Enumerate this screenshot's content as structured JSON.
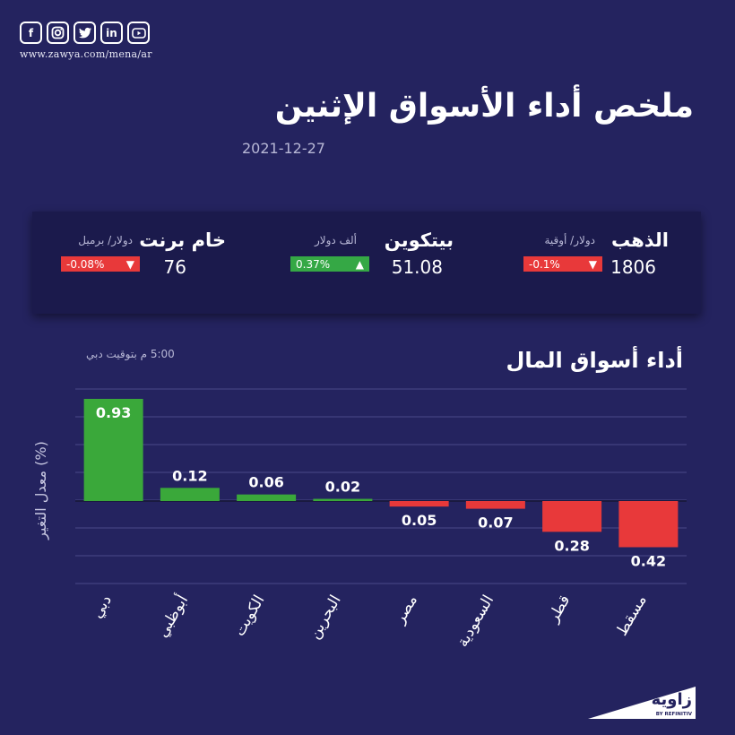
{
  "header": {
    "social_icons": [
      "facebook-icon",
      "instagram-icon",
      "twitter-icon",
      "linkedin-icon",
      "youtube-icon"
    ],
    "site_url": "www.zawya.com/mena/ar",
    "title": "ملخص أداء الأسواق الإثنين",
    "date": "2021-12-27"
  },
  "commodities": [
    {
      "name": "الذهب",
      "unit": "دولار/ أوقية",
      "value": "1806",
      "change": "-0.1%",
      "direction": "down",
      "color": "#e8393a"
    },
    {
      "name": "بيتكوين",
      "unit": "ألف دولار",
      "value": "51.08",
      "change": "0.37%",
      "direction": "up",
      "color": "#35a845"
    },
    {
      "name": "خام برنت",
      "unit": "دولار/ برميل",
      "value": "76",
      "change": "-0.08%",
      "direction": "down",
      "color": "#e8393a"
    }
  ],
  "markets": {
    "title": "أداء أسواق المال",
    "time_note": "5:00 م بتوقيت دبي",
    "ylabel": "معدل التغير (%)"
  },
  "chart_data": {
    "type": "bar",
    "categories": [
      "دبي",
      "أبوظبي",
      "الكويت",
      "البحرين",
      "مصر",
      "السعودية",
      "قطر",
      "مسقط"
    ],
    "values": [
      0.93,
      0.12,
      0.06,
      0.02,
      -0.05,
      -0.07,
      -0.28,
      -0.42
    ],
    "labels": [
      "0.93",
      "0.12",
      "0.06",
      "0.02",
      "0.05",
      "0.07",
      "0.28",
      "0.42"
    ],
    "ylim": [
      -0.52,
      1.02
    ],
    "grid": true,
    "colors": {
      "positive": "#3aa83a",
      "negative": "#e8393a"
    },
    "ylabel": "معدل التغير (%)"
  },
  "logo": {
    "brand": "زاوية",
    "sub": "BY REFINITIV"
  }
}
